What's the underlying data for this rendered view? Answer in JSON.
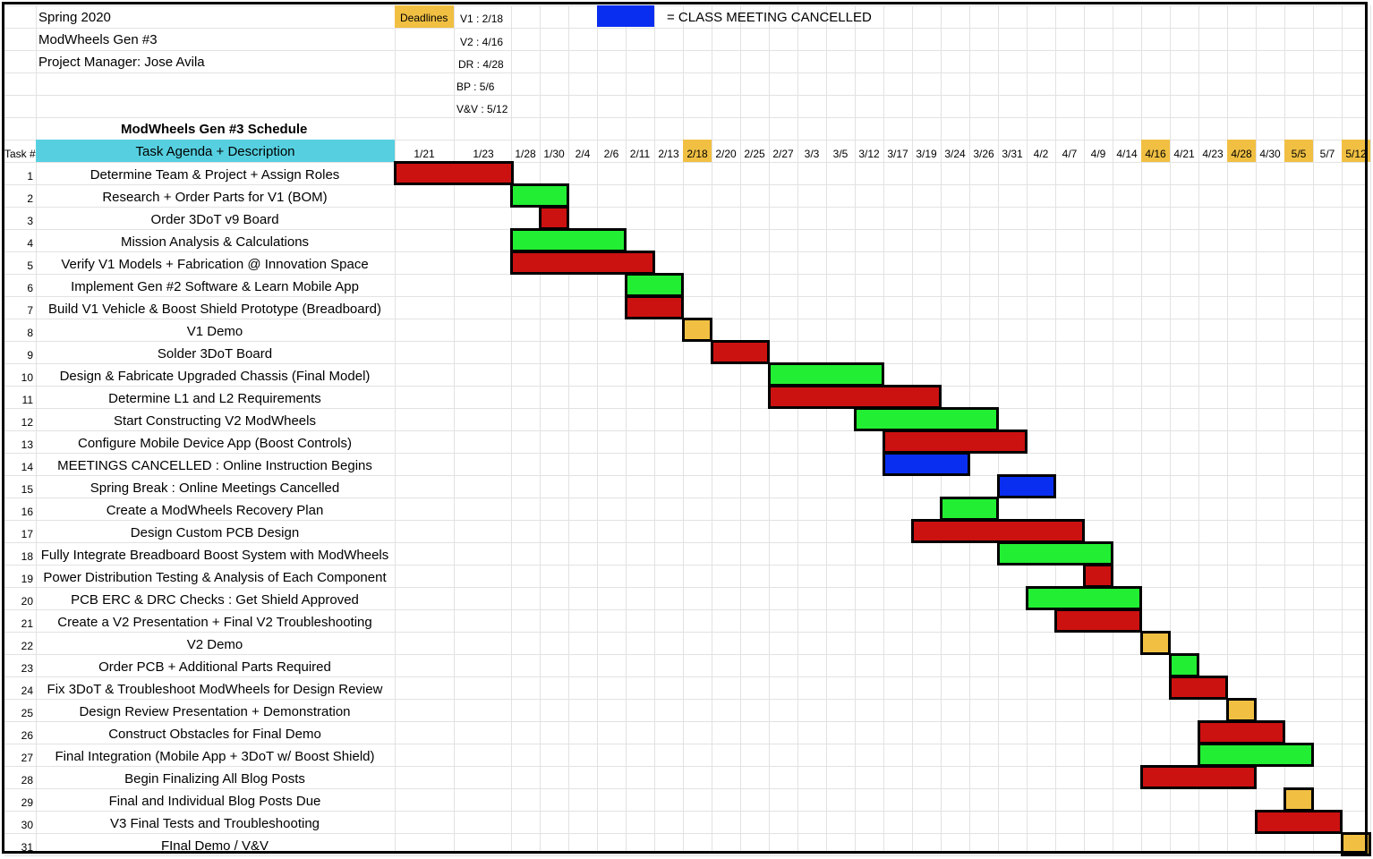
{
  "header": {
    "semester": "Spring 2020",
    "project": "ModWheels Gen #3",
    "manager": "Project Manager: Jose Avila",
    "schedule_title": "ModWheels Gen #3 Schedule",
    "task_num_label": "Task #",
    "task_col_label": "Task Agenda + Description",
    "deadlines_label": "Deadlines",
    "deadlines": [
      "V1 : 2/18",
      "V2 : 4/16",
      "DR : 4/28",
      "BP : 5/6",
      "V&V : 5/12"
    ],
    "legend_text": "= CLASS MEETING CANCELLED"
  },
  "colors": {
    "red": "#cc1111",
    "green": "#22ee33",
    "blue": "#0a2ef0",
    "yellow": "#f1c043",
    "header_cyan": "#56d0e0",
    "deadline_gold": "#f1c043"
  },
  "dates": [
    "1/21",
    "1/23",
    "1/28",
    "1/30",
    "2/4",
    "2/6",
    "2/11",
    "2/13",
    "2/18",
    "2/20",
    "2/25",
    "2/27",
    "3/3",
    "3/5",
    "3/12",
    "3/17",
    "3/19",
    "3/24",
    "3/26",
    "3/31",
    "4/2",
    "4/7",
    "4/9",
    "4/14",
    "4/16",
    "4/21",
    "4/23",
    "4/28",
    "4/30",
    "5/5",
    "5/7",
    "5/12"
  ],
  "highlight_dates": [
    "2/18",
    "4/16",
    "4/28",
    "5/5",
    "5/12"
  ],
  "tasks": [
    {
      "n": "1",
      "name": "Determine Team & Project + Assign Roles",
      "start": "1/21",
      "end": "1/23",
      "color": "red"
    },
    {
      "n": "2",
      "name": "Research + Order Parts for V1 (BOM)",
      "start": "1/28",
      "end": "1/30",
      "color": "green"
    },
    {
      "n": "3",
      "name": "Order 3DoT v9 Board",
      "start": "1/30",
      "end": "1/30",
      "color": "red"
    },
    {
      "n": "4",
      "name": "Mission Analysis & Calculations",
      "start": "1/28",
      "end": "2/6",
      "color": "green"
    },
    {
      "n": "5",
      "name": "Verify V1 Models + Fabrication @ Innovation Space",
      "start": "1/28",
      "end": "2/11",
      "color": "red"
    },
    {
      "n": "6",
      "name": "Implement Gen #2 Software & Learn Mobile App",
      "start": "2/11",
      "end": "2/13",
      "color": "green"
    },
    {
      "n": "7",
      "name": "Build V1 Vehicle & Boost Shield Prototype (Breadboard)",
      "start": "2/11",
      "end": "2/13",
      "color": "red"
    },
    {
      "n": "8",
      "name": "V1 Demo",
      "start": "2/18",
      "end": "2/18",
      "color": "yellow"
    },
    {
      "n": "9",
      "name": "Solder 3DoT Board",
      "start": "2/20",
      "end": "2/25",
      "color": "red"
    },
    {
      "n": "10",
      "name": "Design & Fabricate Upgraded Chassis (Final Model)",
      "start": "2/27",
      "end": "3/12",
      "color": "green"
    },
    {
      "n": "11",
      "name": "Determine L1 and L2 Requirements",
      "start": "2/27",
      "end": "3/19",
      "color": "red"
    },
    {
      "n": "12",
      "name": "Start Constructing V2 ModWheels",
      "start": "3/12",
      "end": "3/26",
      "color": "green"
    },
    {
      "n": "13",
      "name": "Configure Mobile Device App (Boost Controls)",
      "start": "3/17",
      "end": "3/31",
      "color": "red"
    },
    {
      "n": "14",
      "name": "MEETINGS CANCELLED : Online Instruction Begins",
      "start": "3/17",
      "end": "3/24",
      "color": "blue"
    },
    {
      "n": "15",
      "name": "Spring Break : Online Meetings Cancelled",
      "start": "3/31",
      "end": "4/2",
      "color": "blue"
    },
    {
      "n": "16",
      "name": "Create a ModWheels Recovery Plan",
      "start": "3/24",
      "end": "3/26",
      "color": "green"
    },
    {
      "n": "17",
      "name": "Design Custom PCB Design",
      "start": "3/19",
      "end": "4/7",
      "color": "red"
    },
    {
      "n": "18",
      "name": "Fully Integrate Breadboard Boost System with ModWheels",
      "start": "3/31",
      "end": "4/9",
      "color": "green"
    },
    {
      "n": "19",
      "name": "Power Distribution Testing & Analysis of Each Component",
      "start": "4/9",
      "end": "4/9",
      "color": "red"
    },
    {
      "n": "20",
      "name": "PCB ERC & DRC Checks : Get Shield Approved",
      "start": "4/2",
      "end": "4/14",
      "color": "green"
    },
    {
      "n": "21",
      "name": "Create a V2 Presentation + Final V2 Troubleshooting",
      "start": "4/7",
      "end": "4/14",
      "color": "red"
    },
    {
      "n": "22",
      "name": "V2 Demo",
      "start": "4/16",
      "end": "4/16",
      "color": "yellow"
    },
    {
      "n": "23",
      "name": "Order PCB + Additional Parts Required",
      "start": "4/21",
      "end": "4/21",
      "color": "green"
    },
    {
      "n": "24",
      "name": "Fix 3DoT & Troubleshoot ModWheels for Design Review",
      "start": "4/21",
      "end": "4/23",
      "color": "red"
    },
    {
      "n": "25",
      "name": "Design Review Presentation + Demonstration",
      "start": "4/28",
      "end": "4/28",
      "color": "yellow"
    },
    {
      "n": "26",
      "name": "Construct Obstacles for Final Demo",
      "start": "4/23",
      "end": "4/30",
      "color": "red"
    },
    {
      "n": "27",
      "name": "Final Integration (Mobile App + 3DoT w/ Boost Shield)",
      "start": "4/23",
      "end": "5/5",
      "color": "green"
    },
    {
      "n": "28",
      "name": "Begin Finalizing All Blog Posts",
      "start": "4/16",
      "end": "4/28",
      "color": "red"
    },
    {
      "n": "29",
      "name": "Final and Individual Blog Posts Due",
      "start": "5/5",
      "end": "5/5",
      "color": "yellow"
    },
    {
      "n": "30",
      "name": "V3 Final Tests and Troubleshooting",
      "start": "4/30",
      "end": "5/7",
      "color": "red"
    },
    {
      "n": "31",
      "name": "FInal Demo / V&V",
      "start": "5/12",
      "end": "5/12",
      "color": "yellow"
    }
  ]
}
